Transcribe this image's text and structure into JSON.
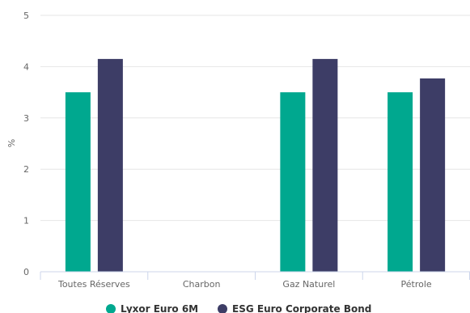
{
  "chart_data": {
    "type": "bar",
    "title": "",
    "xlabel": "",
    "ylabel": "%",
    "ylim": [
      0,
      5
    ],
    "yticks": [
      0,
      1,
      2,
      3,
      4,
      5
    ],
    "grid": true,
    "legend_position": "bottom-center",
    "categories": [
      "Toutes Réserves",
      "Charbon",
      "Gaz Naturel",
      "Pétrole"
    ],
    "series": [
      {
        "name": "Lyxor Euro 6M",
        "color": "#00a88f",
        "values": [
          3.5,
          null,
          3.5,
          3.5
        ]
      },
      {
        "name": "ESG Euro Corporate Bond",
        "color": "#3d3d66",
        "values": [
          4.15,
          null,
          4.15,
          3.77
        ]
      }
    ]
  }
}
